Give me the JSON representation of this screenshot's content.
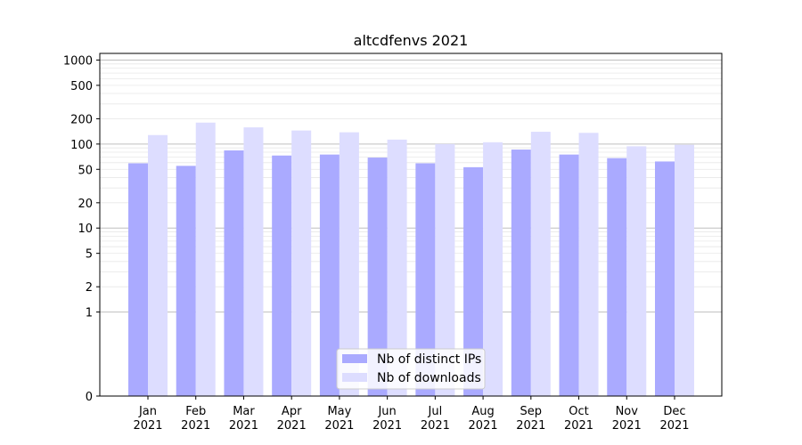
{
  "chart_data": {
    "type": "bar",
    "title": "altcdfenvs 2021",
    "yscale": "symlog",
    "ylim": [
      0,
      1200
    ],
    "y_ticks": [
      0,
      1,
      2,
      5,
      10,
      20,
      50,
      100,
      200,
      500,
      1000
    ],
    "y_tick_labels": [
      "0",
      "1",
      "2",
      "5",
      "10",
      "20",
      "50",
      "100",
      "200",
      "500",
      "1000"
    ],
    "categories": [
      "Jan\n2021",
      "Feb\n2021",
      "Mar\n2021",
      "Apr\n2021",
      "May\n2021",
      "Jun\n2021",
      "Jul\n2021",
      "Aug\n2021",
      "Sep\n2021",
      "Oct\n2021",
      "Nov\n2021",
      "Dec\n2021"
    ],
    "series": [
      {
        "name": "Nb of distinct IPs",
        "color": "#aaaaff",
        "values": [
          59,
          55,
          84,
          73,
          75,
          69,
          59,
          53,
          86,
          75,
          68,
          62
        ]
      },
      {
        "name": "Nb of downloads",
        "color": "#ddddff",
        "values": [
          128,
          180,
          158,
          145,
          138,
          113,
          100,
          105,
          140,
          136,
          94,
          98
        ]
      }
    ],
    "legend_position": "lower-center",
    "grid": true
  }
}
